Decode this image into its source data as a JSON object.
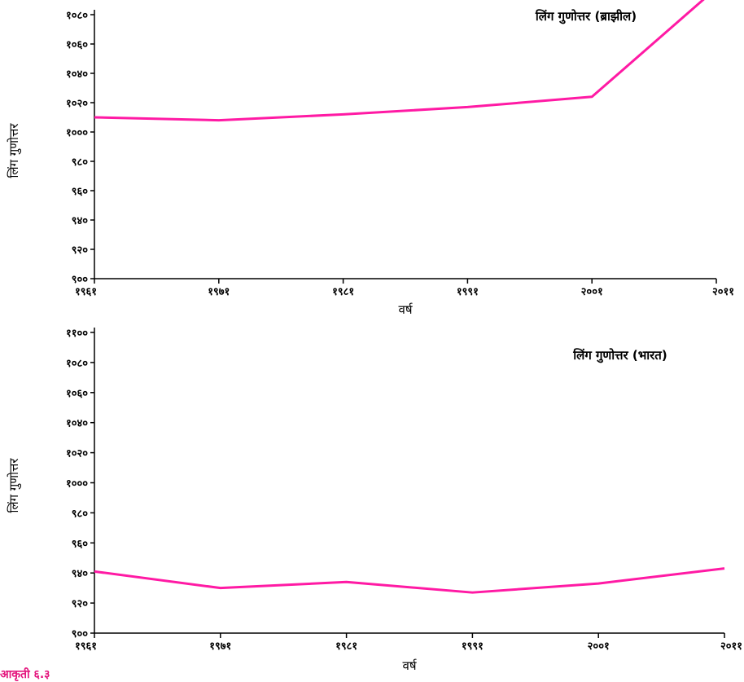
{
  "colors": {
    "line": "#ff1aa4",
    "axis": "#000000",
    "footer": "#e4157d"
  },
  "chart_data": [
    {
      "type": "line",
      "title": "लिंग गुणोत्तर (ब्राझील)",
      "xlabel": "वर्ष",
      "ylabel": "लिंग गुणोत्तर",
      "categories": [
        "१९६१",
        "१९७१",
        "१९८१",
        "१९९१",
        "२००१",
        "२०११"
      ],
      "ylim": [
        900,
        1080
      ],
      "yticks": [
        "९००",
        "९२०",
        "९४०",
        "९६०",
        "९८०",
        "१०००",
        "१०२०",
        "१०४०",
        "१०६०",
        "१०८०"
      ],
      "series": [
        {
          "values": [
            1010,
            1008,
            1012,
            1017,
            1024,
            1098
          ]
        }
      ],
      "grid": false,
      "legend": "none"
    },
    {
      "type": "line",
      "title": "लिंग गुणोत्तर (भारत)",
      "xlabel": "वर्ष",
      "ylabel": "लिंग गुणोत्तर",
      "categories": [
        "१९६१",
        "१९७१",
        "१९८१",
        "१९९१",
        "२००१",
        "२०११"
      ],
      "ylim": [
        900,
        1100
      ],
      "yticks": [
        "९००",
        "९२०",
        "९४०",
        "९६०",
        "९८०",
        "१०००",
        "१०२०",
        "१०४०",
        "१०६०",
        "१०८०",
        "११००"
      ],
      "series": [
        {
          "values": [
            941,
            930,
            934,
            927,
            933,
            943
          ]
        }
      ],
      "grid": false,
      "legend": "none"
    }
  ],
  "footer": {
    "text": "आकृती ६.३"
  }
}
